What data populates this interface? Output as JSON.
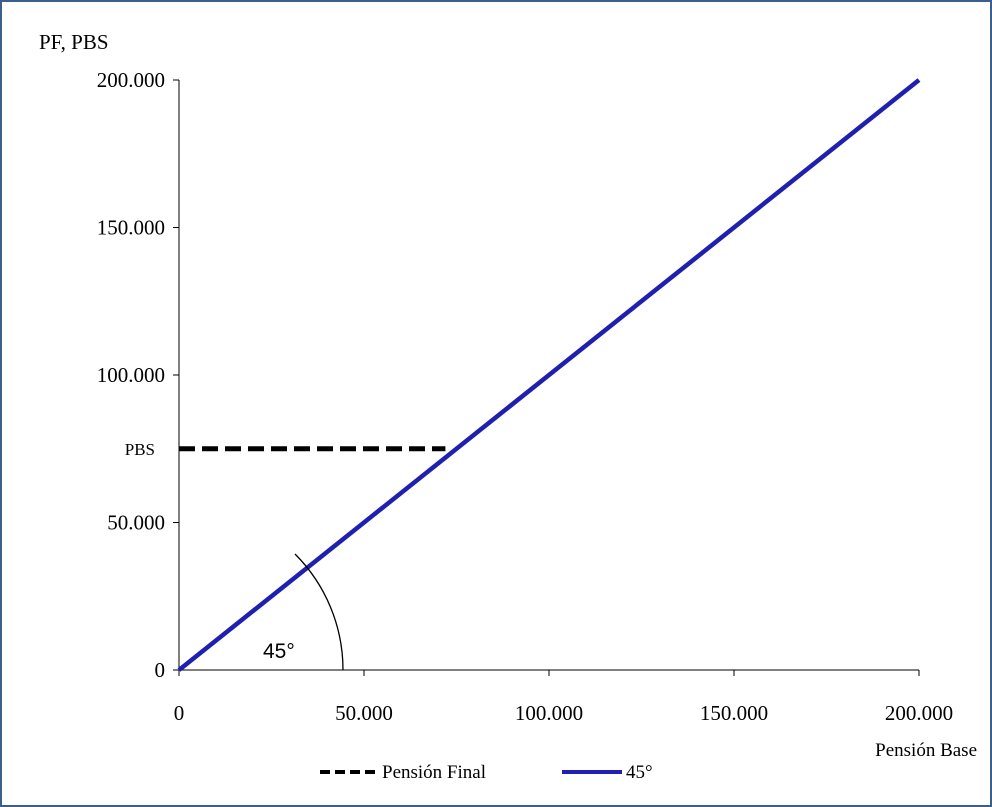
{
  "chart_data": {
    "type": "line",
    "ylabel": "PF, PBS",
    "xlabel": "Pensión Base",
    "xlim": [
      0,
      200000
    ],
    "ylim": [
      0,
      200000
    ],
    "x_ticks": [
      {
        "value": 0,
        "label": "0"
      },
      {
        "value": 50000,
        "label": "50.000"
      },
      {
        "value": 100000,
        "label": "100.000"
      },
      {
        "value": 150000,
        "label": "150.000"
      },
      {
        "value": 200000,
        "label": "200.000"
      }
    ],
    "y_ticks": [
      {
        "value": 0,
        "label": "0"
      },
      {
        "value": 50000,
        "label": "50.000"
      },
      {
        "value": 100000,
        "label": "100.000"
      },
      {
        "value": 150000,
        "label": "150.000"
      },
      {
        "value": 200000,
        "label": "200.000"
      }
    ],
    "reference_label": {
      "value": 75000,
      "label": "PBS"
    },
    "series": [
      {
        "name": "Pensión Final",
        "style": "dashed",
        "color": "#000000",
        "x": [
          0,
          72000
        ],
        "y": [
          75000,
          75000
        ]
      },
      {
        "name": "45°",
        "style": "solid",
        "color": "#1f1fb0",
        "x": [
          0,
          200000
        ],
        "y": [
          0,
          200000
        ]
      }
    ],
    "annotations": [
      {
        "text": "45°",
        "type": "angle-arc",
        "at": [
          0,
          0
        ],
        "color": "#000000"
      }
    ],
    "legend_position": "bottom",
    "grid": false
  }
}
